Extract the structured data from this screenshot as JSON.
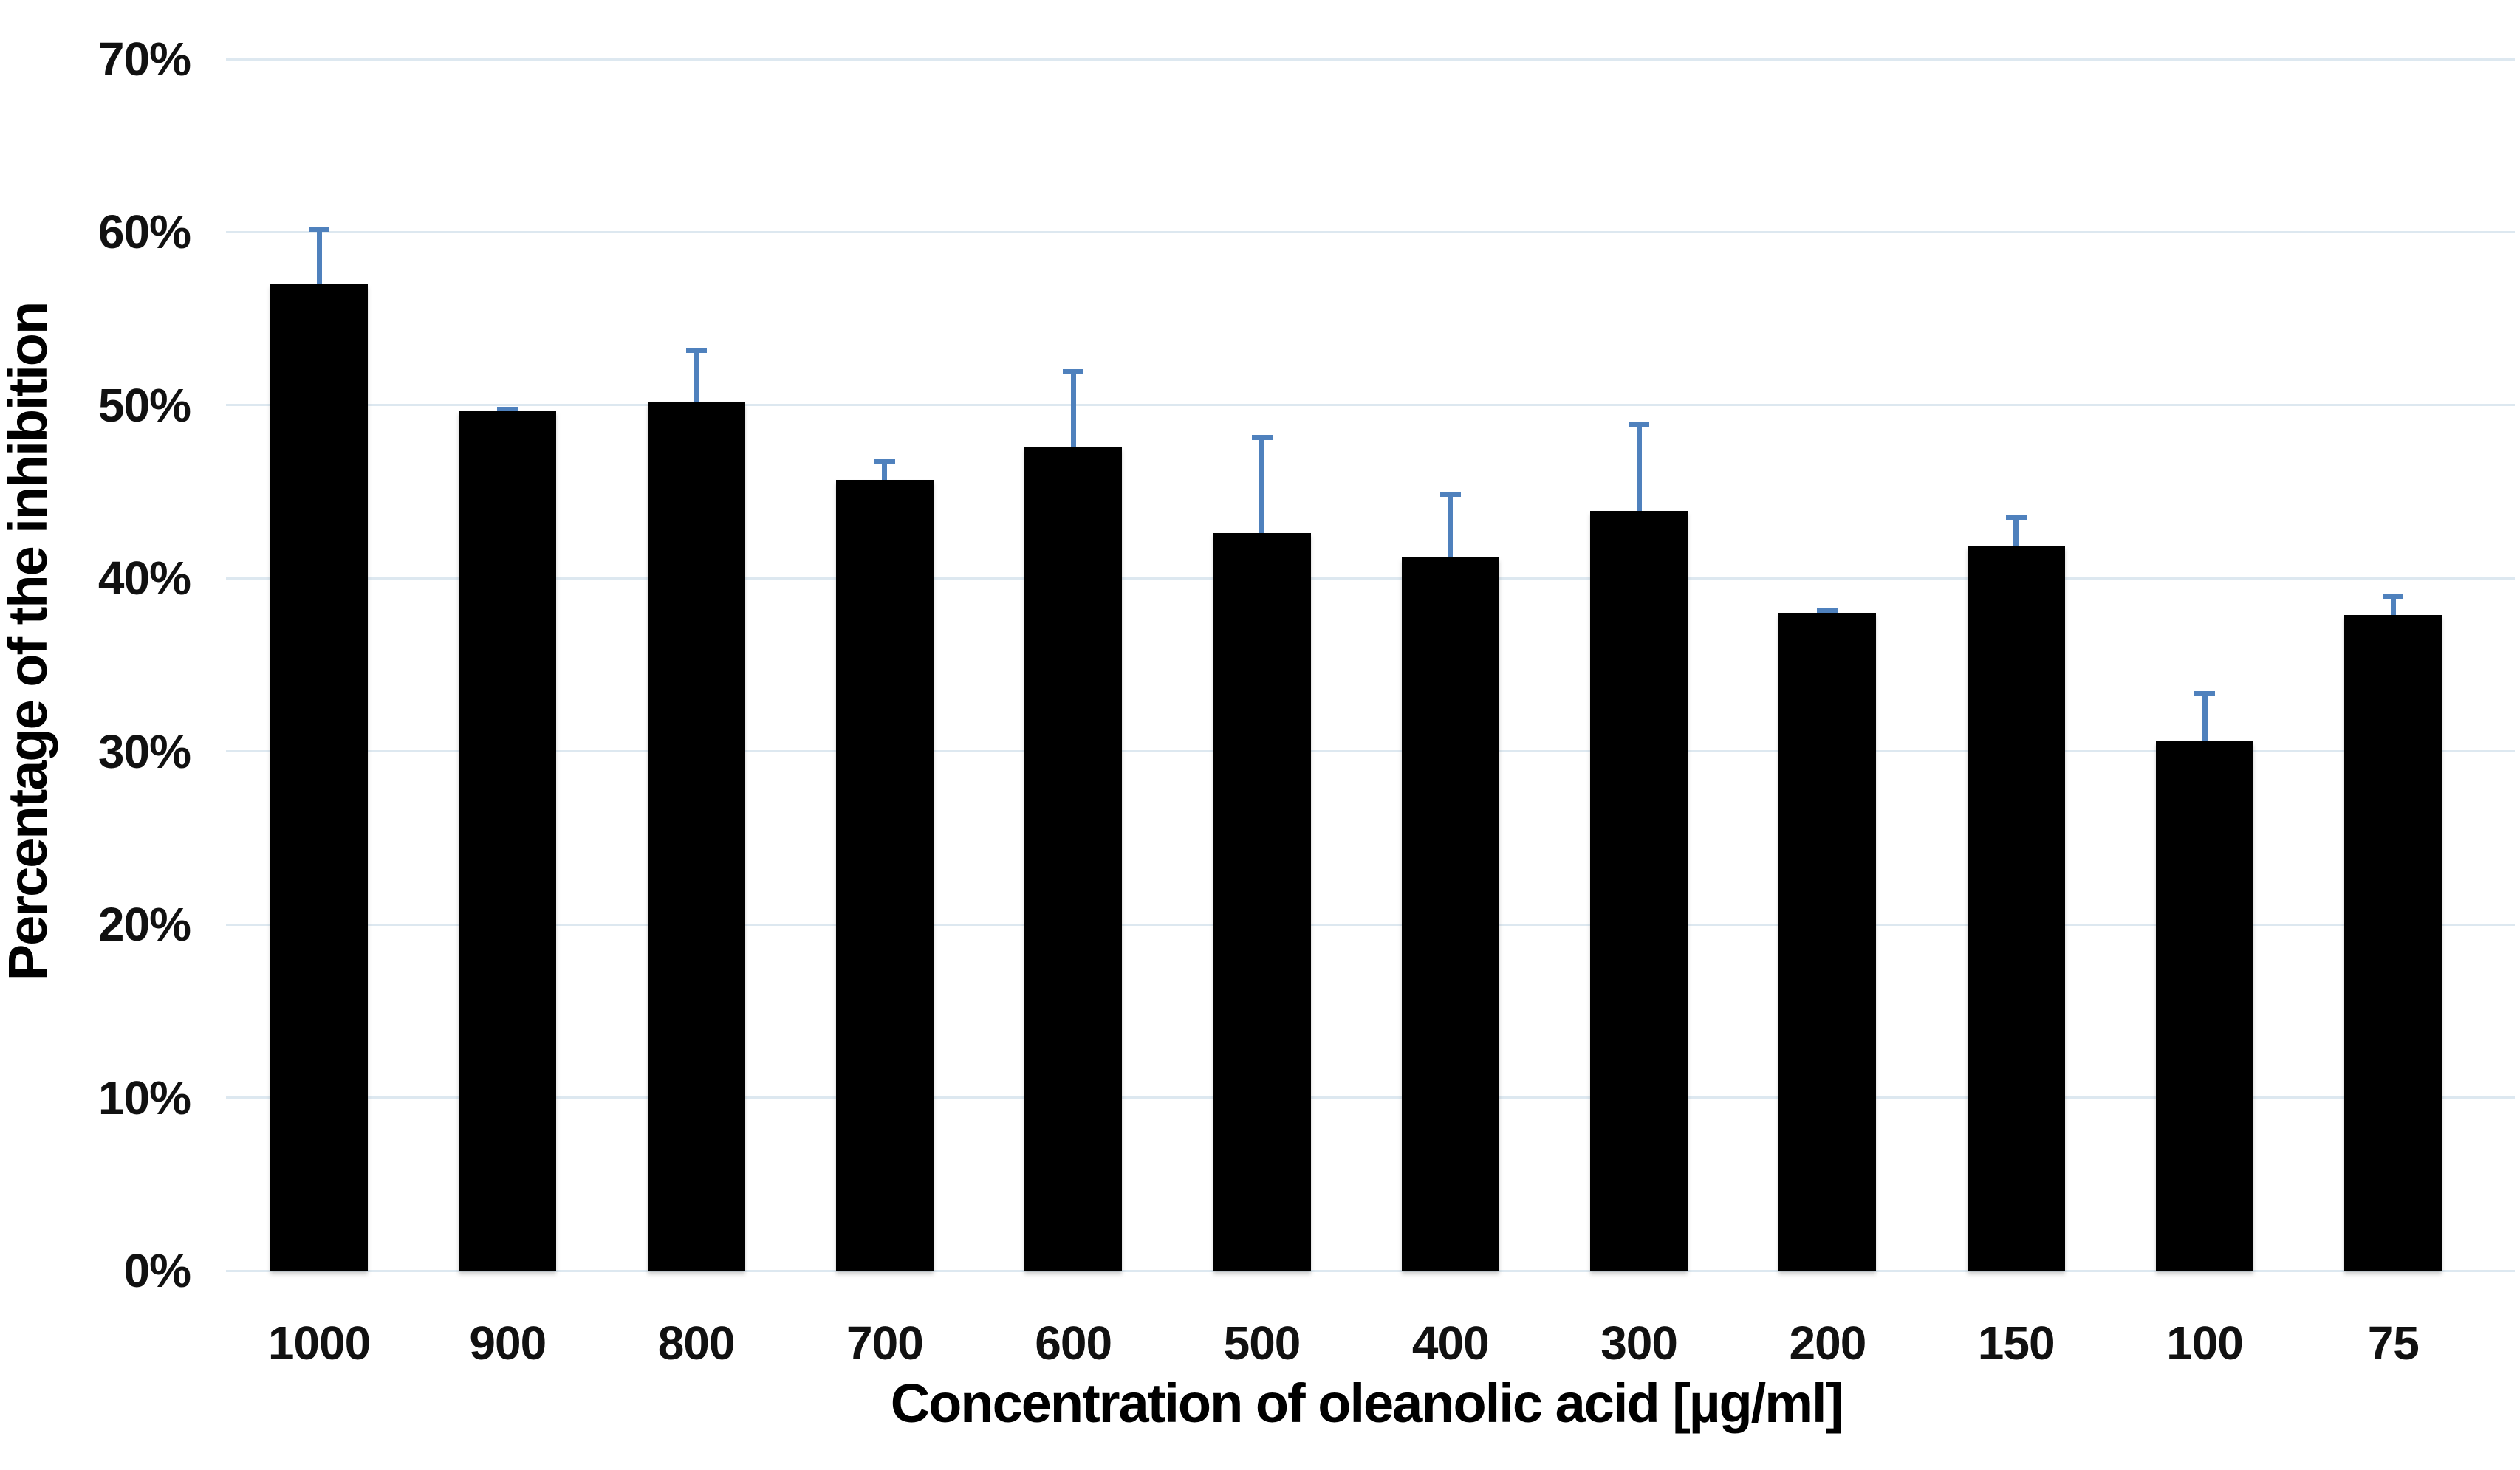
{
  "chart_data": {
    "type": "bar",
    "title": "",
    "xlabel": "Concentration of oleanolic acid [µg/ml]",
    "ylabel": "Percentage of the inhibition",
    "categories": [
      "1000",
      "900",
      "800",
      "700",
      "600",
      "500",
      "400",
      "300",
      "200",
      "150",
      "100",
      "75"
    ],
    "values": [
      57.0,
      49.7,
      50.2,
      45.7,
      47.6,
      42.6,
      41.2,
      43.9,
      38.0,
      41.9,
      30.6,
      37.9
    ],
    "error_plus": [
      3.3,
      0.2,
      3.1,
      1.2,
      4.5,
      5.7,
      3.8,
      5.1,
      0.3,
      1.8,
      2.9,
      1.2
    ],
    "ylim": [
      0,
      70
    ],
    "ytick_step": 10,
    "ytick_labels": [
      "0%",
      "10%",
      "20%",
      "30%",
      "40%",
      "50%",
      "60%",
      "70%"
    ],
    "grid": true,
    "legend": "none",
    "bar_color": "#000000",
    "error_bar_color": "#4f81bd",
    "gridline_color": "#dde8f0",
    "background_color": "#ffffff"
  }
}
